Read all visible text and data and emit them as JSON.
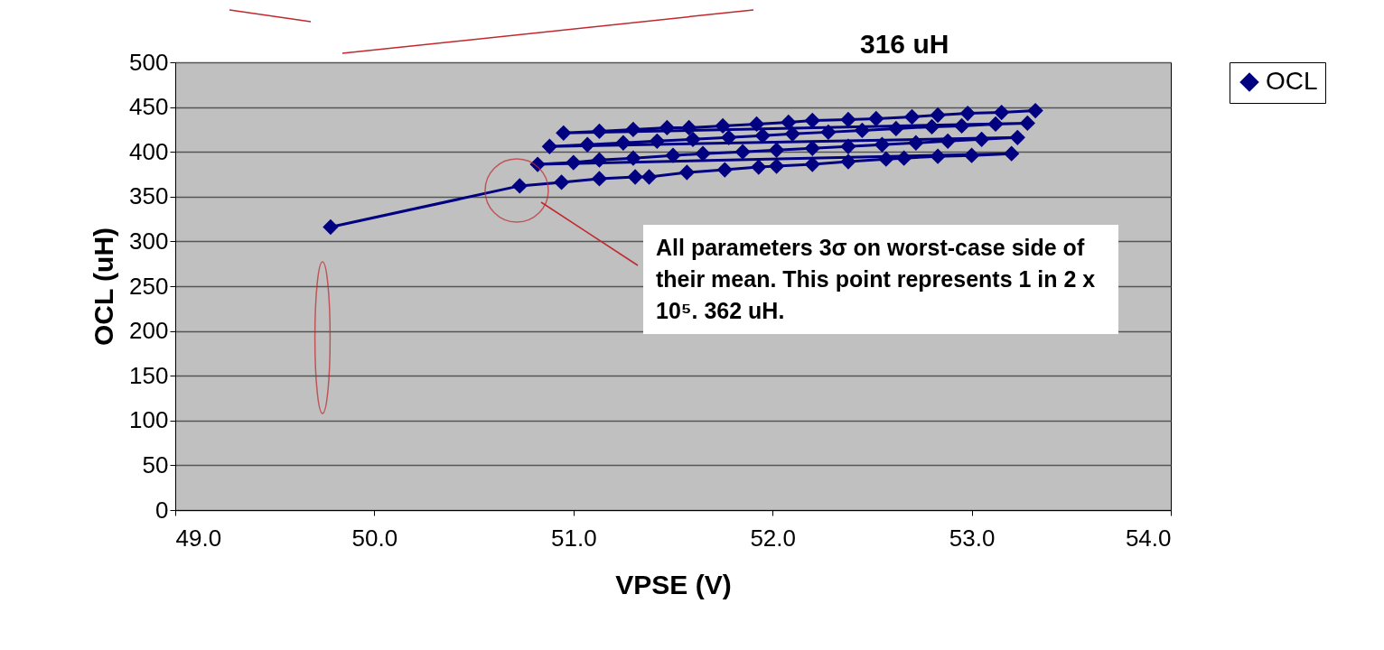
{
  "chart_data": {
    "type": "line",
    "xlabel": "VPSE (V)",
    "ylabel": "OCL (uH)",
    "xlim": [
      49,
      54
    ],
    "xticks": [
      {
        "value": 49,
        "label": "49.0"
      },
      {
        "value": 50,
        "label": "50.0"
      },
      {
        "value": 51,
        "label": "51.0"
      },
      {
        "value": 52,
        "label": "52.0"
      },
      {
        "value": 53,
        "label": "53.0"
      },
      {
        "value": 54,
        "label": "54.0"
      }
    ],
    "ylim": [
      0,
      500
    ],
    "yticks": [
      0,
      50,
      100,
      150,
      200,
      250,
      300,
      350,
      400,
      450,
      500
    ],
    "grid": "y",
    "legend": "right",
    "marker": "diamond",
    "line_style": "solid",
    "x": [
      49.78,
      50.73,
      50.94,
      51.13,
      51.31,
      51.38,
      51.57,
      51.76,
      51.93,
      52.02,
      52.2,
      52.38,
      52.57,
      52.66,
      52.83,
      53.0,
      53.2,
      50.82,
      51.0,
      51.13,
      51.3,
      51.5,
      51.65,
      51.85,
      52.02,
      52.2,
      52.38,
      52.55,
      52.72,
      52.88,
      53.05,
      53.23,
      50.88,
      51.07,
      51.25,
      51.42,
      51.6,
      51.78,
      51.95,
      52.1,
      52.28,
      52.45,
      52.62,
      52.8,
      52.95,
      53.12,
      53.28,
      50.95,
      51.13,
      51.3,
      51.47,
      51.58,
      51.75,
      51.92,
      52.08,
      52.2,
      52.38,
      52.52,
      52.7,
      52.83,
      52.98,
      53.15,
      53.32
    ],
    "series": [
      {
        "name": "OCL",
        "color": "#000080",
        "values": [
          316,
          362,
          366,
          370,
          372,
          372,
          377,
          380,
          383,
          384,
          386,
          389,
          392,
          393,
          395,
          396,
          398,
          386,
          388,
          391,
          393,
          396,
          398,
          400,
          402,
          404,
          406,
          408,
          410,
          412,
          414,
          416,
          406,
          408,
          410,
          412,
          414,
          416,
          418,
          420,
          422,
          424,
          426,
          428,
          429,
          431,
          432,
          421,
          423,
          425,
          427,
          427,
          429,
          431,
          433,
          435,
          436,
          437,
          439,
          441,
          443,
          444,
          446
        ]
      }
    ],
    "annotations": [
      "316 uH",
      "All parameters 3σ on worst-case side of their mean. This point represents 1 in 2 x 10⁵. 362 uH."
    ]
  }
}
